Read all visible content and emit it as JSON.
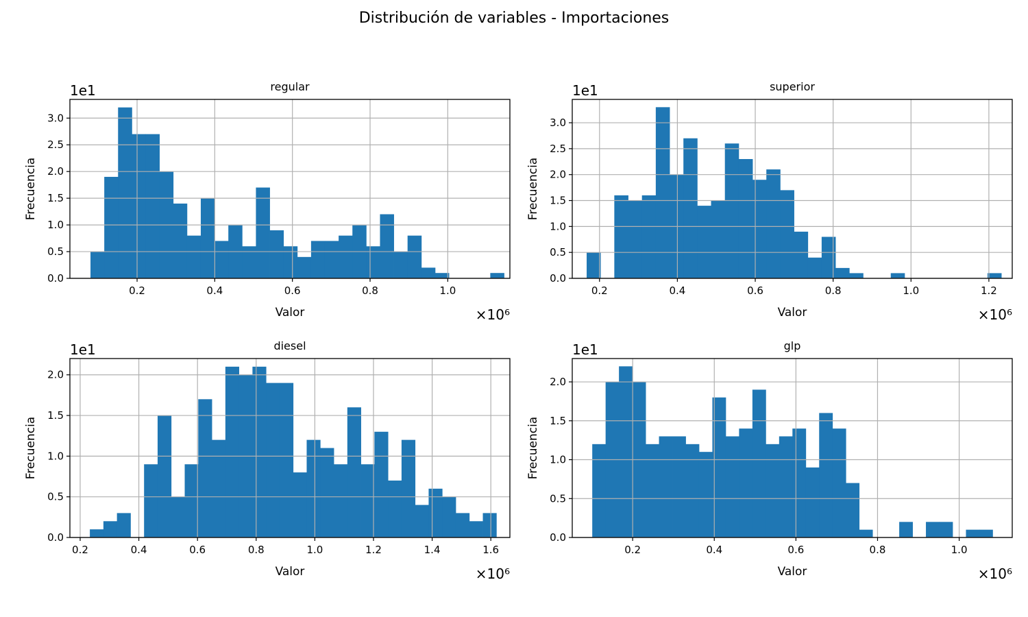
{
  "figure": {
    "suptitle": "Distribución de variables - Importaciones"
  },
  "style": {
    "bar_color": "#1f77b4",
    "grid_color": "#b0b0b0",
    "axis_color": "#000000"
  },
  "chart_data": [
    {
      "type": "bar",
      "title": "regular",
      "xlabel": "Valor",
      "ylabel": "Frecuencia",
      "x_multiplier": "×10⁶",
      "y_multiplier": "1e1",
      "xlim": [
        0.027,
        1.16
      ],
      "ylim": [
        0,
        3.35
      ],
      "xticks": [
        0.2,
        0.4,
        0.6,
        0.8,
        1.0
      ],
      "yticks": [
        0.0,
        0.5,
        1.0,
        1.5,
        2.0,
        2.5,
        3.0
      ],
      "grid": true,
      "bin_start": 0.08,
      "bin_width": 0.0355,
      "values": [
        0.5,
        1.9,
        3.2,
        2.7,
        2.7,
        2.0,
        1.4,
        0.8,
        1.5,
        0.7,
        1.0,
        0.6,
        1.7,
        0.9,
        0.6,
        0.4,
        0.7,
        0.7,
        0.8,
        1.0,
        0.6,
        1.2,
        0.5,
        0.8,
        0.2,
        0.1,
        0,
        0,
        0,
        0.1
      ]
    },
    {
      "type": "bar",
      "title": "superior",
      "xlabel": "Valor",
      "ylabel": "Frecuencia",
      "x_multiplier": "×10⁶",
      "y_multiplier": "1e1",
      "xlim": [
        0.13,
        1.26
      ],
      "ylim": [
        0,
        3.45
      ],
      "xticks": [
        0.2,
        0.4,
        0.6,
        0.8,
        1.0,
        1.2
      ],
      "yticks": [
        0.0,
        0.5,
        1.0,
        1.5,
        2.0,
        2.5,
        3.0
      ],
      "grid": true,
      "bin_start": 0.167,
      "bin_width": 0.0355,
      "values": [
        0.5,
        0,
        1.6,
        1.5,
        1.6,
        3.3,
        2.0,
        2.7,
        1.4,
        1.5,
        2.6,
        2.3,
        1.9,
        2.1,
        1.7,
        0.9,
        0.4,
        0.8,
        0.2,
        0.1,
        0,
        0,
        0.1,
        0,
        0,
        0,
        0,
        0,
        0,
        0.1
      ]
    },
    {
      "type": "bar",
      "title": "diesel",
      "xlabel": "Valor",
      "ylabel": "Frecuencia",
      "x_multiplier": "×10⁶",
      "y_multiplier": "1e1",
      "xlim": [
        0.165,
        1.665
      ],
      "ylim": [
        0,
        2.2
      ],
      "xticks": [
        0.2,
        0.4,
        0.6,
        0.8,
        1.0,
        1.2,
        1.4,
        1.6
      ],
      "yticks": [
        0.0,
        0.5,
        1.0,
        1.5,
        2.0
      ],
      "grid": true,
      "bin_start": 0.233,
      "bin_width": 0.0462,
      "values": [
        0.1,
        0.2,
        0.3,
        0,
        0.9,
        1.5,
        0.5,
        0.9,
        1.7,
        1.2,
        2.1,
        2.0,
        2.1,
        1.9,
        1.9,
        0.8,
        1.2,
        1.1,
        0.9,
        1.6,
        0.9,
        1.3,
        0.7,
        1.2,
        0.4,
        0.6,
        0.5,
        0.3,
        0.2,
        0.3
      ]
    },
    {
      "type": "bar",
      "title": "glp",
      "xlabel": "Valor",
      "ylabel": "Frecuencia",
      "x_multiplier": "×10⁶",
      "y_multiplier": "1e1",
      "xlim": [
        0.052,
        1.13
      ],
      "ylim": [
        0,
        2.3
      ],
      "xticks": [
        0.2,
        0.4,
        0.6,
        0.8,
        1.0
      ],
      "yticks": [
        0.0,
        0.5,
        1.0,
        1.5,
        2.0
      ],
      "grid": true,
      "bin_start": 0.101,
      "bin_width": 0.0327,
      "values": [
        1.2,
        2.0,
        2.2,
        2.0,
        1.2,
        1.3,
        1.3,
        1.2,
        1.1,
        1.8,
        1.3,
        1.4,
        1.9,
        1.2,
        1.3,
        1.4,
        0.9,
        1.6,
        1.4,
        0.7,
        0.1,
        0,
        0,
        0.2,
        0,
        0.2,
        0.2,
        0,
        0.1,
        0.1
      ]
    }
  ]
}
